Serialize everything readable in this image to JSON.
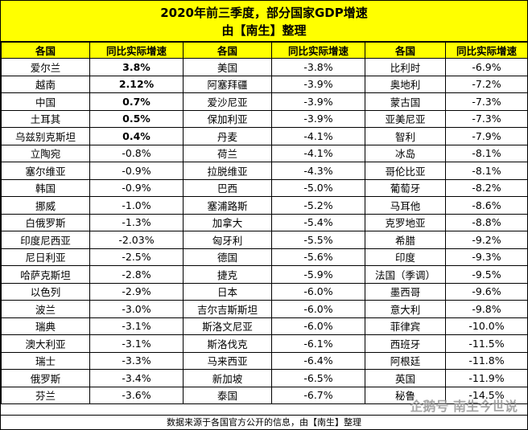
{
  "title": {
    "line1": "2020年前三季度，部分国家GDP增速",
    "line2": "由【南生】整理"
  },
  "headers": [
    "各国",
    "同比实际增速",
    "各国",
    "同比实际增速",
    "各国",
    "同比实际增速"
  ],
  "rows": [
    [
      {
        "c": "爱尔兰",
        "v": "3.8%",
        "b": true
      },
      {
        "c": "美国",
        "v": "-3.8%"
      },
      {
        "c": "比利时",
        "v": "-6.9%"
      }
    ],
    [
      {
        "c": "越南",
        "v": "2.12%",
        "b": true
      },
      {
        "c": "阿塞拜疆",
        "v": "-3.9%"
      },
      {
        "c": "奥地利",
        "v": "-7.2%"
      }
    ],
    [
      {
        "c": "中国",
        "v": "0.7%",
        "b": true
      },
      {
        "c": "爱沙尼亚",
        "v": "-3.9%"
      },
      {
        "c": "蒙古国",
        "v": "-7.3%"
      }
    ],
    [
      {
        "c": "土耳其",
        "v": "0.5%",
        "b": true
      },
      {
        "c": "保加利亚",
        "v": "-3.9%"
      },
      {
        "c": "亚美尼亚",
        "v": "-7.3%"
      }
    ],
    [
      {
        "c": "乌兹别克斯坦",
        "v": "0.4%",
        "b": true
      },
      {
        "c": "丹麦",
        "v": "-4.1%"
      },
      {
        "c": "智利",
        "v": "-7.9%"
      }
    ],
    [
      {
        "c": "立陶宛",
        "v": "-0.8%"
      },
      {
        "c": "荷兰",
        "v": "-4.1%"
      },
      {
        "c": "冰岛",
        "v": "-8.1%"
      }
    ],
    [
      {
        "c": "塞尔维亚",
        "v": "-0.9%"
      },
      {
        "c": "拉脱维亚",
        "v": "-4.3%"
      },
      {
        "c": "哥伦比亚",
        "v": "-8.1%"
      }
    ],
    [
      {
        "c": "韩国",
        "v": "-0.9%"
      },
      {
        "c": "巴西",
        "v": "-5.0%"
      },
      {
        "c": "葡萄牙",
        "v": "-8.2%"
      }
    ],
    [
      {
        "c": "挪威",
        "v": "-1.0%"
      },
      {
        "c": "塞浦路斯",
        "v": "-5.2%"
      },
      {
        "c": "马耳他",
        "v": "-8.6%"
      }
    ],
    [
      {
        "c": "白俄罗斯",
        "v": "-1.3%"
      },
      {
        "c": "加拿大",
        "v": "-5.4%"
      },
      {
        "c": "克罗地亚",
        "v": "-8.8%"
      }
    ],
    [
      {
        "c": "印度尼西亚",
        "v": "-2.03%"
      },
      {
        "c": "匈牙利",
        "v": "-5.5%"
      },
      {
        "c": "希腊",
        "v": "-9.2%"
      }
    ],
    [
      {
        "c": "尼日利亚",
        "v": "-2.5%"
      },
      {
        "c": "德国",
        "v": "-5.6%"
      },
      {
        "c": "印度",
        "v": "-9.3%"
      }
    ],
    [
      {
        "c": "哈萨克斯坦",
        "v": "-2.8%"
      },
      {
        "c": "捷克",
        "v": "-5.9%"
      },
      {
        "c": "法国（季调）",
        "v": "-9.5%"
      }
    ],
    [
      {
        "c": "以色列",
        "v": "-2.9%"
      },
      {
        "c": "日本",
        "v": "-6.0%"
      },
      {
        "c": "墨西哥",
        "v": "-9.6%"
      }
    ],
    [
      {
        "c": "波兰",
        "v": "-3.0%"
      },
      {
        "c": "吉尔吉斯斯坦",
        "v": "-6.0%"
      },
      {
        "c": "意大利",
        "v": "-9.8%"
      }
    ],
    [
      {
        "c": "瑞典",
        "v": "-3.1%"
      },
      {
        "c": "斯洛文尼亚",
        "v": "-6.0%"
      },
      {
        "c": "菲律宾",
        "v": "-10.0%"
      }
    ],
    [
      {
        "c": "澳大利亚",
        "v": "-3.1%"
      },
      {
        "c": "斯洛伐克",
        "v": "-6.1%"
      },
      {
        "c": "西班牙",
        "v": "-11.5%"
      }
    ],
    [
      {
        "c": "瑞士",
        "v": "-3.3%"
      },
      {
        "c": "马来西亚",
        "v": "-6.4%"
      },
      {
        "c": "阿根廷",
        "v": "-11.8%"
      }
    ],
    [
      {
        "c": "俄罗斯",
        "v": "-3.4%"
      },
      {
        "c": "新加坡",
        "v": "-6.5%"
      },
      {
        "c": "英国",
        "v": "-11.9%"
      }
    ],
    [
      {
        "c": "芬兰",
        "v": "-3.6%"
      },
      {
        "c": "泰国",
        "v": "-6.7%"
      },
      {
        "c": "秘鲁",
        "v": "-14.5%"
      }
    ]
  ],
  "footer": "数据来源于各国官方公开的信息，由【南生】整理",
  "watermark": "企鹅号 南生今世说",
  "colors": {
    "header_bg": "#ffff00",
    "border": "#000000"
  }
}
